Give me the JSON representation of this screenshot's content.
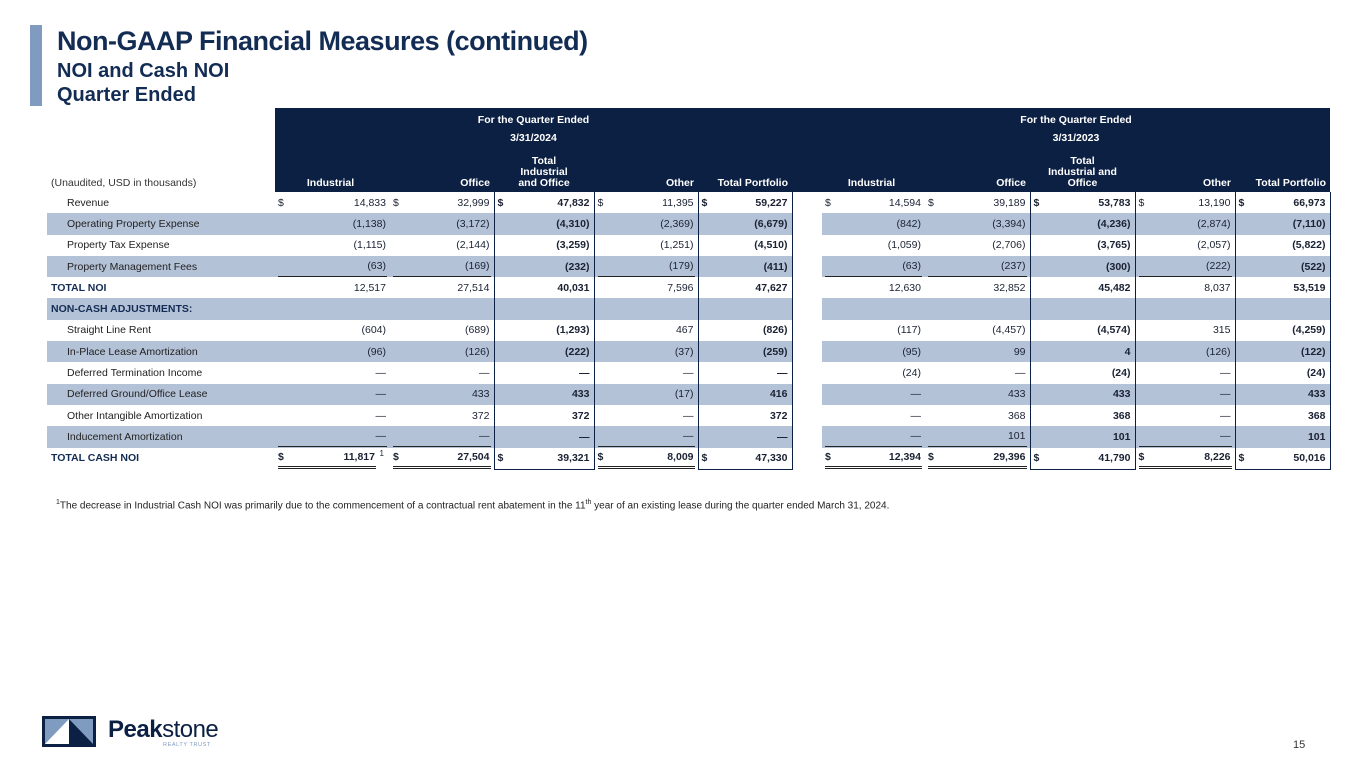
{
  "title": "Non-GAAP Financial Measures (continued)",
  "subtitle1": "NOI and Cash NOI",
  "subtitle2": "Quarter Ended",
  "table": {
    "unit_note": "(Unaudited, USD in thousands)",
    "periods": [
      {
        "heading": "For the Quarter Ended",
        "date": "3/31/2024"
      },
      {
        "heading": "For the Quarter Ended",
        "date": "3/31/2023"
      }
    ],
    "columns": [
      "Industrial",
      "Office",
      "Total Industrial and Office",
      "Other",
      "Total Portfolio"
    ],
    "rows": [
      {
        "label": "Revenue",
        "dollar": true,
        "values": [
          "14,833",
          "32,999",
          "47,832",
          "11,395",
          "59,227",
          "14,594",
          "39,189",
          "53,783",
          "13,190",
          "66,973"
        ]
      },
      {
        "label": "Operating Property Expense",
        "shade": true,
        "values": [
          "(1,138)",
          "(3,172)",
          "(4,310)",
          "(2,369)",
          "(6,679)",
          "(842)",
          "(3,394)",
          "(4,236)",
          "(2,874)",
          "(7,110)"
        ]
      },
      {
        "label": "Property Tax Expense",
        "values": [
          "(1,115)",
          "(2,144)",
          "(3,259)",
          "(1,251)",
          "(4,510)",
          "(1,059)",
          "(2,706)",
          "(3,765)",
          "(2,057)",
          "(5,822)"
        ]
      },
      {
        "label": "Property Management Fees",
        "shade": true,
        "underline": true,
        "values": [
          "(63)",
          "(169)",
          "(232)",
          "(179)",
          "(411)",
          "(63)",
          "(237)",
          "(300)",
          "(222)",
          "(522)"
        ]
      },
      {
        "label": "TOTAL NOI",
        "total": true,
        "values": [
          "12,517",
          "27,514",
          "40,031",
          "7,596",
          "47,627",
          "12,630",
          "32,852",
          "45,482",
          "8,037",
          "53,519"
        ]
      },
      {
        "label": "NON-CASH ADJUSTMENTS:",
        "total": true,
        "shade": true,
        "values": [
          "",
          "",
          "",
          "",
          "",
          "",
          "",
          "",
          "",
          ""
        ]
      },
      {
        "label": "Straight Line Rent",
        "values": [
          "(604)",
          "(689)",
          "(1,293)",
          "467",
          "(826)",
          "(117)",
          "(4,457)",
          "(4,574)",
          "315",
          "(4,259)"
        ]
      },
      {
        "label": "In-Place Lease Amortization",
        "shade": true,
        "values": [
          "(96)",
          "(126)",
          "(222)",
          "(37)",
          "(259)",
          "(95)",
          "99",
          "4",
          "(126)",
          "(122)"
        ]
      },
      {
        "label": "Deferred Termination Income",
        "values": [
          "—",
          "—",
          "—",
          "—",
          "—",
          "(24)",
          "—",
          "(24)",
          "—",
          "(24)"
        ]
      },
      {
        "label": "Deferred Ground/Office Lease",
        "shade": true,
        "values": [
          "—",
          "433",
          "433",
          "(17)",
          "416",
          "—",
          "433",
          "433",
          "—",
          "433"
        ]
      },
      {
        "label": "Other Intangible Amortization",
        "values": [
          "—",
          "372",
          "372",
          "—",
          "372",
          "—",
          "368",
          "368",
          "—",
          "368"
        ]
      },
      {
        "label": "Inducement Amortization",
        "shade": true,
        "underline": true,
        "values": [
          "—",
          "—",
          "—",
          "—",
          "—",
          "—",
          "101",
          "101",
          "—",
          "101"
        ]
      },
      {
        "label": "TOTAL CASH NOI",
        "total": true,
        "allbold": true,
        "dollar": true,
        "last": true,
        "footnote_ref": "1",
        "values": [
          "11,817",
          "27,504",
          "39,321",
          "8,009",
          "47,330",
          "12,394",
          "29,396",
          "41,790",
          "8,226",
          "50,016"
        ]
      }
    ],
    "currency_symbol": "$"
  },
  "footnote": {
    "marker": "1",
    "text_before": "The decrease in Industrial Cash NOI was primarily due to the commencement of a contractual rent abatement in the 11",
    "ordinal_suffix": "th",
    "text_after": " year of an existing lease during the quarter ended March 31, 2024."
  },
  "logo": {
    "word_bold": "Peak",
    "word_regular": "stone",
    "tagline": "REALTY TRUST"
  },
  "page_number": "15",
  "colors": {
    "navy": "#0c2043",
    "shade": "#b4c2d7",
    "accent": "#7f9bc0"
  }
}
